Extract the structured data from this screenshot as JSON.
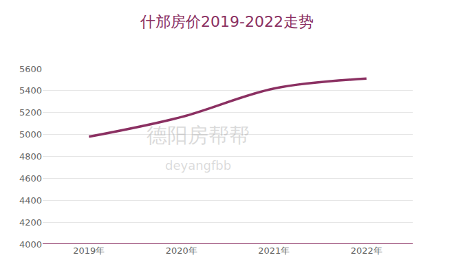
{
  "chart_data": {
    "type": "line",
    "title": "什邡房价2019-2022走势",
    "categories": [
      "2019年",
      "2020年",
      "2021年",
      "2022年"
    ],
    "values": [
      4980,
      5160,
      5420,
      5510
    ],
    "color": "#8b3062",
    "line_style": "smooth",
    "ylim": [
      4000,
      5600
    ],
    "yticks": [
      4000,
      4200,
      4400,
      4600,
      4800,
      5000,
      5200,
      5400,
      5600
    ],
    "grid": true,
    "annotations": [
      "德阳房帮帮",
      "deyangfbb"
    ]
  }
}
